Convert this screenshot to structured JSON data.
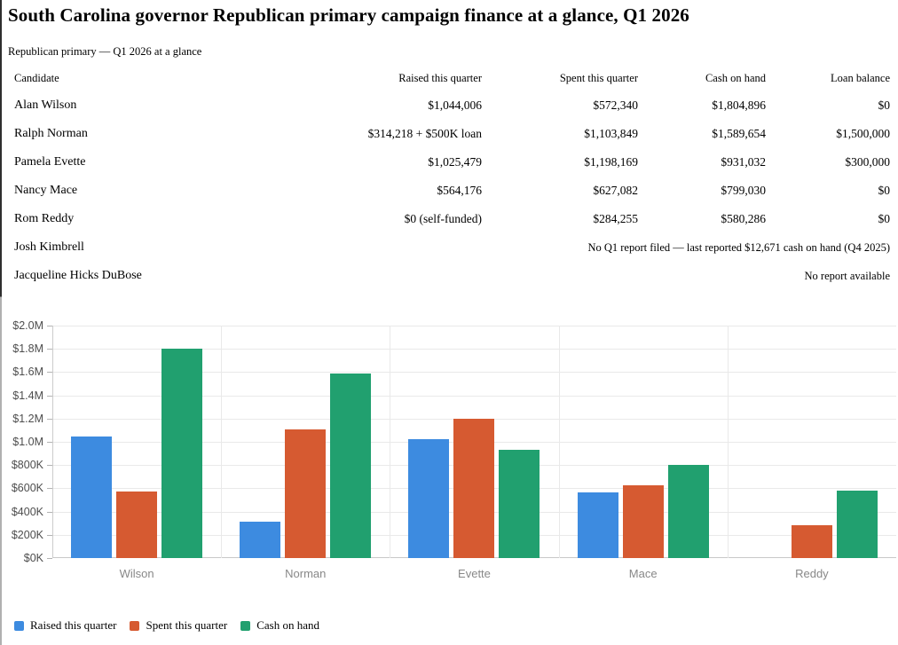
{
  "header": {
    "title": "South Carolina governor Republican primary campaign finance at a glance, Q1 2026",
    "subtitle": "Republican primary — Q1 2026 at a glance"
  },
  "table": {
    "columns": [
      "Candidate",
      "Raised this quarter",
      "Spent this quarter",
      "Cash on hand",
      "Loan balance"
    ],
    "rows": [
      {
        "candidate": "Alan Wilson",
        "raised": "$1,044,006",
        "spent": "$572,340",
        "cash": "$1,804,896",
        "loan": "$0"
      },
      {
        "candidate": "Ralph Norman",
        "raised": "$314,218 + $500K loan",
        "spent": "$1,103,849",
        "cash": "$1,589,654",
        "loan": "$1,500,000"
      },
      {
        "candidate": "Pamela Evette",
        "raised": "$1,025,479",
        "spent": "$1,198,169",
        "cash": "$931,032",
        "loan": "$300,000"
      },
      {
        "candidate": "Nancy Mace",
        "raised": "$564,176",
        "spent": "$627,082",
        "cash": "$799,030",
        "loan": "$0"
      },
      {
        "candidate": "Rom Reddy",
        "raised": "$0 (self-funded)",
        "spent": "$284,255",
        "cash": "$580,286",
        "loan": "$0"
      },
      {
        "candidate": "Josh Kimbrell",
        "note": "No Q1 report filed — last reported $12,671 cash on hand (Q4 2025)"
      },
      {
        "candidate": "Jacqueline Hicks DuBose",
        "note": "No report available"
      }
    ]
  },
  "chart_data": {
    "type": "bar",
    "categories": [
      "Wilson",
      "Norman",
      "Evette",
      "Mace",
      "Reddy"
    ],
    "series": [
      {
        "name": "Raised this quarter",
        "color": "#3d8be0",
        "values": [
          1044006,
          314218,
          1025479,
          564176,
          0
        ]
      },
      {
        "name": "Spent this quarter",
        "color": "#d65a31",
        "values": [
          572340,
          1103849,
          1198169,
          627082,
          284255
        ]
      },
      {
        "name": "Cash on hand",
        "color": "#21a06f",
        "values": [
          1804896,
          1589654,
          931032,
          799030,
          580286
        ]
      }
    ],
    "ylim": [
      0,
      2000000
    ],
    "ytick_values": [
      0,
      200000,
      400000,
      600000,
      800000,
      1000000,
      1200000,
      1400000,
      1600000,
      1800000,
      2000000
    ],
    "ytick_labels": [
      "$0K",
      "$200K",
      "$400K",
      "$600K",
      "$800K",
      "$1.0M",
      "$1.2M",
      "$1.4M",
      "$1.6M",
      "$1.8M",
      "$2.0M"
    ],
    "xlabel": "",
    "ylabel": "",
    "grid": true,
    "legend_position": "bottom-left"
  }
}
